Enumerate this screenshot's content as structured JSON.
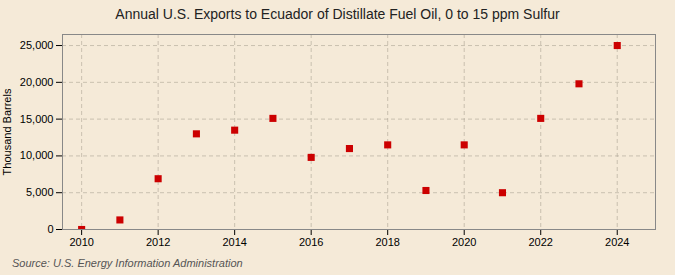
{
  "chart_data": {
    "type": "scatter",
    "title": "Annual U.S. Exports to Ecuador of Distillate Fuel Oil, 0 to 15 ppm Sulfur",
    "ylabel": "Thousand Barrels",
    "source": "Source: U.S. Energy Information Administration",
    "x": [
      2010,
      2011,
      2012,
      2013,
      2014,
      2015,
      2016,
      2017,
      2018,
      2019,
      2020,
      2021,
      2022,
      2023,
      2024
    ],
    "values": [
      0,
      1300,
      6900,
      13000,
      13500,
      15100,
      9800,
      11000,
      11500,
      5300,
      11500,
      5000,
      15100,
      19800,
      25000
    ],
    "color": "#cc0000",
    "marker": "square",
    "xlim": [
      2009.5,
      2025.0
    ],
    "ylim": [
      0,
      26500
    ],
    "xticks": [
      2010,
      2012,
      2014,
      2016,
      2018,
      2020,
      2022,
      2024
    ],
    "yticks": [
      0,
      {
        "value": 5000,
        "label": "5,000"
      },
      {
        "value": 10000,
        "label": "10,000"
      },
      {
        "value": 15000,
        "label": "15,000"
      },
      {
        "value": 20000,
        "label": "20,000"
      },
      {
        "value": 25000,
        "label": "25,000"
      }
    ],
    "grid": true
  }
}
